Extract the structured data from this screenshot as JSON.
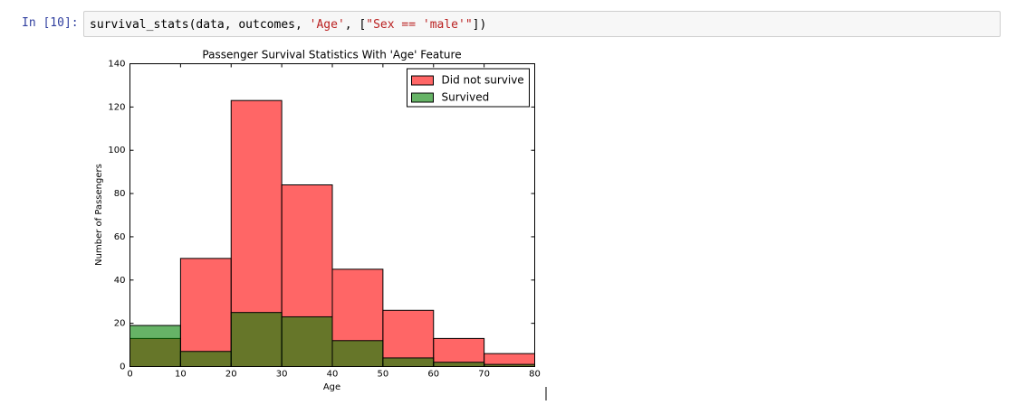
{
  "cell": {
    "prompt": "In [10]:",
    "code": [
      "survival_stats(data, outcomes, ",
      "'Age'",
      ", [",
      "\"Sex == 'male'\"",
      "])"
    ]
  },
  "chart_data": {
    "type": "histogram",
    "title": "Passenger Survival Statistics With 'Age' Feature",
    "x_label": "Age",
    "y_label": "Number of Passengers",
    "bins": [
      0,
      10,
      20,
      30,
      40,
      50,
      60,
      70,
      80
    ],
    "series": [
      {
        "name": "Did not survive",
        "color": "#ff0000",
        "values": [
          13,
          50,
          123,
          84,
          45,
          26,
          13,
          6
        ]
      },
      {
        "name": "Survived",
        "color": "#008000",
        "values": [
          19,
          7,
          25,
          23,
          12,
          4,
          2,
          1
        ]
      }
    ],
    "xlim": [
      0,
      80
    ],
    "xticks": [
      0,
      10,
      20,
      30,
      40,
      50,
      60,
      70,
      80
    ],
    "ylim": [
      0,
      140
    ],
    "yticks": [
      0,
      20,
      40,
      60,
      80,
      100,
      120,
      140
    ],
    "opacity": 0.6,
    "legend": "upper right",
    "grid": false
  }
}
